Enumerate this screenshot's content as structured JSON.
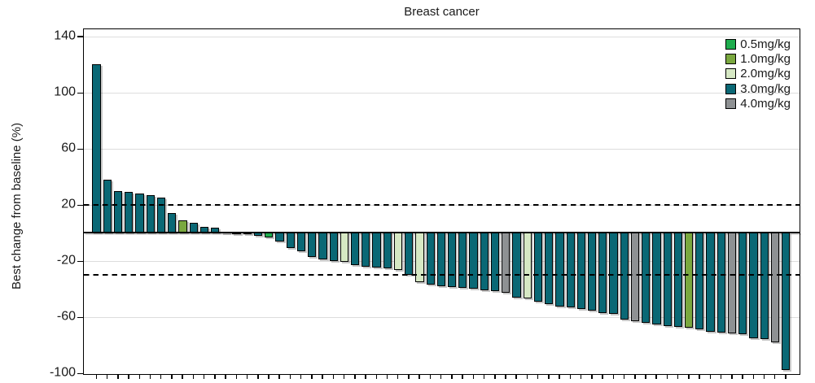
{
  "chart_data": {
    "type": "bar",
    "subtype": "waterfall",
    "title": "Breast cancer",
    "ylabel": "Best change from baseline (%)",
    "xlabel": "",
    "yticks": [
      140,
      100,
      60,
      20,
      -20,
      -60,
      -100
    ],
    "ylim": [
      -100,
      145
    ],
    "grid": "horizontal-light",
    "reference_lines_dashed": [
      20,
      -30
    ],
    "legend_position": "top-right-inside",
    "legend_title": "",
    "doses": [
      {
        "label": "0.5mg/kg",
        "color": "#1fad4e"
      },
      {
        "label": "1.0mg/kg",
        "color": "#7aa83f"
      },
      {
        "label": "2.0mg/kg",
        "color": "#d6e8c4"
      },
      {
        "label": "3.0mg/kg",
        "color": "#0a6875"
      },
      {
        "label": "4.0mg/kg",
        "color": "#8e9193"
      }
    ],
    "bars": [
      {
        "value": 120,
        "dose": "3.0mg/kg"
      },
      {
        "value": 38,
        "dose": "3.0mg/kg"
      },
      {
        "value": 30,
        "dose": "3.0mg/kg"
      },
      {
        "value": 29,
        "dose": "3.0mg/kg"
      },
      {
        "value": 28,
        "dose": "3.0mg/kg"
      },
      {
        "value": 27,
        "dose": "3.0mg/kg"
      },
      {
        "value": 25,
        "dose": "3.0mg/kg"
      },
      {
        "value": 14,
        "dose": "3.0mg/kg"
      },
      {
        "value": 9,
        "dose": "1.0mg/kg"
      },
      {
        "value": 7,
        "dose": "3.0mg/kg"
      },
      {
        "value": 4.5,
        "dose": "3.0mg/kg"
      },
      {
        "value": 3.5,
        "dose": "3.0mg/kg"
      },
      {
        "value": 1,
        "dose": "3.0mg/kg"
      },
      {
        "value": 0,
        "dose": "3.0mg/kg"
      },
      {
        "value": -1,
        "dose": "3.0mg/kg"
      },
      {
        "value": -2,
        "dose": "3.0mg/kg"
      },
      {
        "value": -3.5,
        "dose": "0.5mg/kg"
      },
      {
        "value": -6,
        "dose": "3.0mg/kg"
      },
      {
        "value": -11,
        "dose": "3.0mg/kg"
      },
      {
        "value": -13.5,
        "dose": "3.0mg/kg"
      },
      {
        "value": -17.5,
        "dose": "3.0mg/kg"
      },
      {
        "value": -19,
        "dose": "3.0mg/kg"
      },
      {
        "value": -20,
        "dose": "3.0mg/kg"
      },
      {
        "value": -21,
        "dose": "2.0mg/kg"
      },
      {
        "value": -23,
        "dose": "3.0mg/kg"
      },
      {
        "value": -24,
        "dose": "3.0mg/kg"
      },
      {
        "value": -25,
        "dose": "3.0mg/kg"
      },
      {
        "value": -25.5,
        "dose": "3.0mg/kg"
      },
      {
        "value": -26.5,
        "dose": "2.0mg/kg"
      },
      {
        "value": -30,
        "dose": "3.0mg/kg"
      },
      {
        "value": -35,
        "dose": "2.0mg/kg"
      },
      {
        "value": -37,
        "dose": "3.0mg/kg"
      },
      {
        "value": -38,
        "dose": "3.0mg/kg"
      },
      {
        "value": -39,
        "dose": "3.0mg/kg"
      },
      {
        "value": -39.5,
        "dose": "3.0mg/kg"
      },
      {
        "value": -40,
        "dose": "3.0mg/kg"
      },
      {
        "value": -41,
        "dose": "3.0mg/kg"
      },
      {
        "value": -41.5,
        "dose": "3.0mg/kg"
      },
      {
        "value": -43,
        "dose": "4.0mg/kg"
      },
      {
        "value": -46,
        "dose": "3.0mg/kg"
      },
      {
        "value": -47,
        "dose": "2.0mg/kg"
      },
      {
        "value": -49,
        "dose": "3.0mg/kg"
      },
      {
        "value": -51,
        "dose": "3.0mg/kg"
      },
      {
        "value": -52.5,
        "dose": "3.0mg/kg"
      },
      {
        "value": -53.5,
        "dose": "3.0mg/kg"
      },
      {
        "value": -54.5,
        "dose": "3.0mg/kg"
      },
      {
        "value": -55.5,
        "dose": "3.0mg/kg"
      },
      {
        "value": -57,
        "dose": "3.0mg/kg"
      },
      {
        "value": -58,
        "dose": "3.0mg/kg"
      },
      {
        "value": -62,
        "dose": "3.0mg/kg"
      },
      {
        "value": -63,
        "dose": "4.0mg/kg"
      },
      {
        "value": -64.5,
        "dose": "3.0mg/kg"
      },
      {
        "value": -65.5,
        "dose": "3.0mg/kg"
      },
      {
        "value": -66.5,
        "dose": "3.0mg/kg"
      },
      {
        "value": -67,
        "dose": "3.0mg/kg"
      },
      {
        "value": -68,
        "dose": "1.0mg/kg"
      },
      {
        "value": -69,
        "dose": "3.0mg/kg"
      },
      {
        "value": -70.5,
        "dose": "3.0mg/kg"
      },
      {
        "value": -71,
        "dose": "3.0mg/kg"
      },
      {
        "value": -71.5,
        "dose": "4.0mg/kg"
      },
      {
        "value": -72.5,
        "dose": "3.0mg/kg"
      },
      {
        "value": -75,
        "dose": "3.0mg/kg"
      },
      {
        "value": -76,
        "dose": "3.0mg/kg"
      },
      {
        "value": -78,
        "dose": "4.0mg/kg"
      },
      {
        "value": -98,
        "dose": "3.0mg/kg"
      }
    ]
  }
}
